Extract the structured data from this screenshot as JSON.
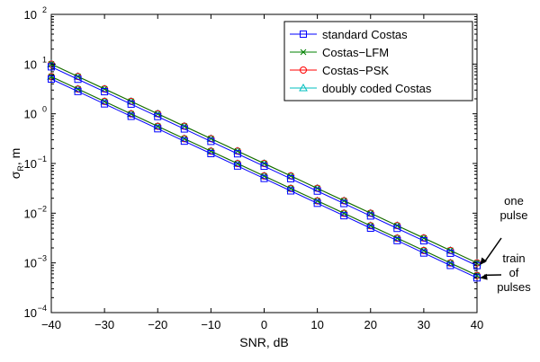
{
  "chart_data": {
    "type": "line",
    "xlabel": "SNR, dB",
    "ylabel_main": "σ",
    "ylabel_sub": "R",
    "ylabel_unit": ", m",
    "xlim": [
      -40,
      40
    ],
    "ylim": [
      0.0001,
      100
    ],
    "yscale": "log",
    "xticks": [
      -40,
      -30,
      -20,
      -10,
      0,
      10,
      20,
      30,
      40
    ],
    "xtick_labels": [
      "−40",
      "−30",
      "−20",
      "−10",
      "0",
      "10",
      "20",
      "30",
      "40"
    ],
    "yticks": [
      0.0001,
      0.001,
      0.01,
      0.1,
      1,
      10,
      100
    ],
    "ytick_exponents": [
      "−4",
      "−3",
      "−2",
      "−1",
      "0",
      "1",
      "2"
    ],
    "ytick_base": "10",
    "grid": false,
    "legend_position": "top-right",
    "x": [
      -40,
      -35,
      -30,
      -25,
      -20,
      -15,
      -10,
      -5,
      0,
      5,
      10,
      15,
      20,
      25,
      30,
      35,
      40
    ],
    "series": [
      {
        "name": "standard Costas",
        "color": "#0000ff",
        "marker": "square",
        "group": "one pulse",
        "y_at_x0": 0.088
      },
      {
        "name": "Costas−LFM",
        "color": "#008000",
        "marker": "x",
        "group": "one pulse",
        "y_at_x0": 0.1
      },
      {
        "name": "Costas−PSK",
        "color": "#ff0000",
        "marker": "circle",
        "group": "one pulse",
        "y_at_x0": 0.1
      },
      {
        "name": "doubly coded Costas",
        "color": "#00bfbf",
        "marker": "triangle",
        "group": "one pulse",
        "y_at_x0": 0.1
      },
      {
        "name": "standard Costas",
        "color": "#0000ff",
        "marker": "square",
        "group": "train of pulses",
        "y_at_x0": 0.05
      },
      {
        "name": "Costas−LFM",
        "color": "#008000",
        "marker": "x",
        "group": "train of pulses",
        "y_at_x0": 0.056
      },
      {
        "name": "Costas−PSK",
        "color": "#ff0000",
        "marker": "circle",
        "group": "train of pulses",
        "y_at_x0": 0.056
      },
      {
        "name": "doubly coded Costas",
        "color": "#00bfbf",
        "marker": "triangle",
        "group": "train of pulses",
        "y_at_x0": 0.056
      }
    ],
    "slope_decades_per_10dB": -0.5,
    "annotations": [
      {
        "lines": [
          "one",
          "pulse"
        ],
        "points_to_x": 40,
        "points_to_y": 0.0009
      },
      {
        "lines": [
          "train",
          "of",
          "pulses"
        ],
        "points_to_x": 40,
        "points_to_y": 0.0005
      }
    ]
  }
}
